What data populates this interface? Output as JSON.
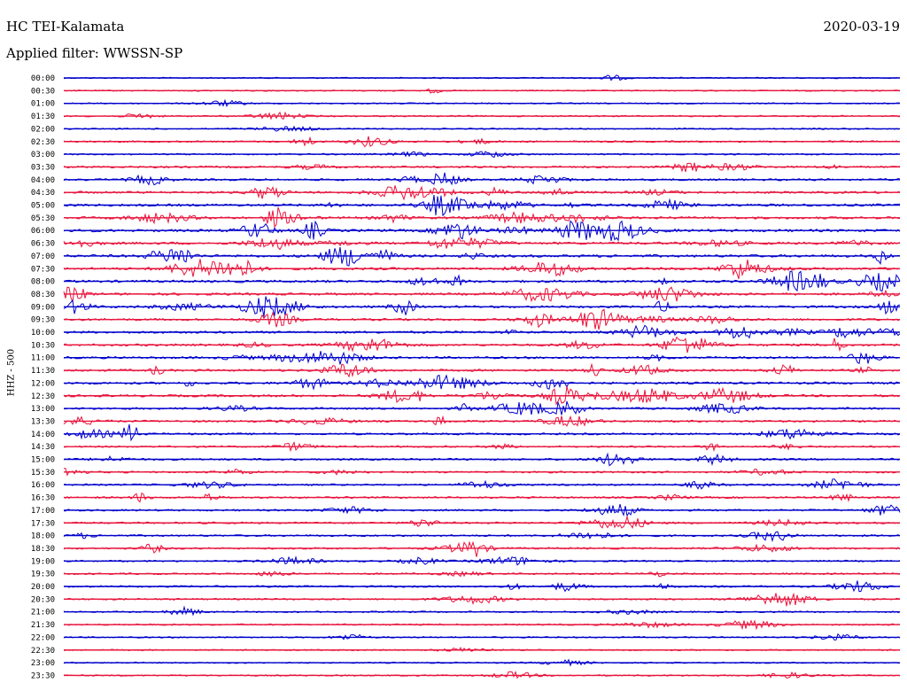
{
  "header": {
    "station": "HC TEI-Kalamata",
    "filter": "Applied filter: WWSSN-SP",
    "date": "2020-03-19"
  },
  "side_label": "HHZ - 500",
  "colors": {
    "trace_a": "#0000cc",
    "trace_b": "#e8143c"
  },
  "chart_data": {
    "type": "line",
    "title": "HC TEI-Kalamata",
    "subtitle": "Applied filter: WWSSN-SP",
    "ylabel": "HHZ - 500",
    "xlabel": "",
    "rows": [
      "00:00",
      "00:30",
      "01:00",
      "01:30",
      "02:00",
      "02:30",
      "03:00",
      "03:30",
      "04:00",
      "04:30",
      "05:00",
      "05:30",
      "06:00",
      "06:30",
      "07:00",
      "07:30",
      "08:00",
      "08:30",
      "09:00",
      "09:30",
      "10:00",
      "10:30",
      "11:00",
      "11:30",
      "12:00",
      "12:30",
      "13:00",
      "13:30",
      "14:00",
      "14:30",
      "15:00",
      "15:30",
      "16:00",
      "16:30",
      "17:00",
      "17:30",
      "18:00",
      "18:30",
      "19:00",
      "19:30",
      "20:00",
      "20:30",
      "21:00",
      "21:30",
      "22:00",
      "22:30",
      "23:00",
      "23:30"
    ],
    "series_colors": [
      "#0000cc",
      "#e8143c"
    ],
    "activity": [
      0.1,
      0.08,
      0.12,
      0.15,
      0.12,
      0.25,
      0.2,
      0.35,
      0.4,
      0.45,
      0.55,
      0.5,
      0.6,
      0.55,
      0.6,
      0.55,
      0.55,
      0.5,
      0.5,
      0.45,
      0.5,
      0.45,
      0.45,
      0.45,
      0.45,
      0.5,
      0.4,
      0.35,
      0.35,
      0.3,
      0.35,
      0.3,
      0.3,
      0.3,
      0.3,
      0.3,
      0.3,
      0.3,
      0.25,
      0.25,
      0.3,
      0.25,
      0.2,
      0.2,
      0.15,
      0.1,
      0.1,
      0.15
    ],
    "grid": false
  }
}
